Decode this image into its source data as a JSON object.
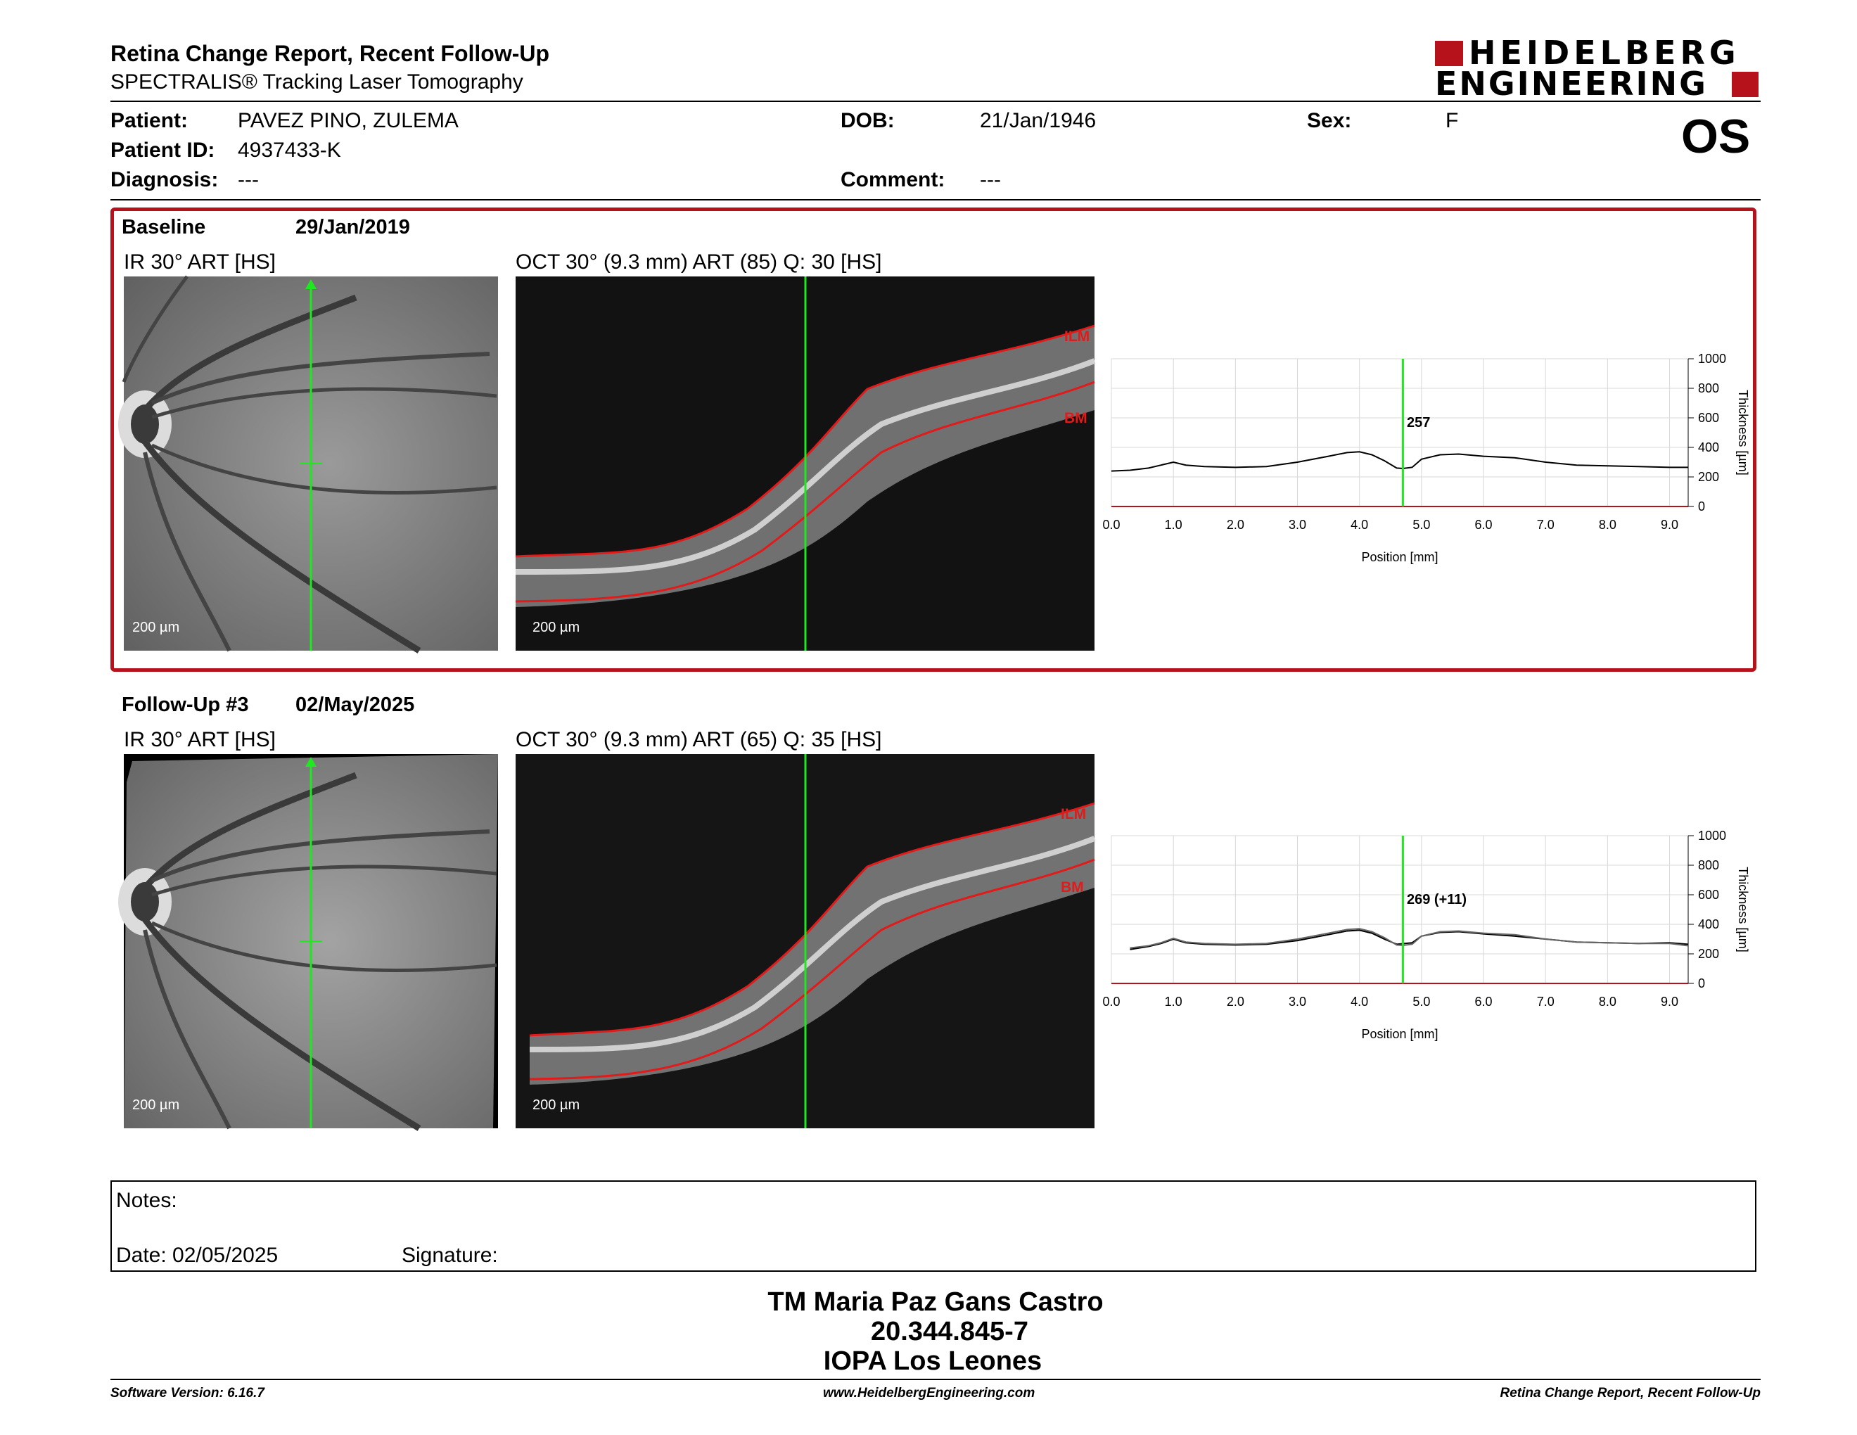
{
  "header": {
    "title": "Retina Change Report, Recent Follow-Up",
    "subtitle": "SPECTRALIS® Tracking Laser Tomography",
    "brand_line1": "HEIDELBERG",
    "brand_line2": "ENGINEERING",
    "brand_color": "#b5121b"
  },
  "patient": {
    "patient_label": "Patient:",
    "patient_value": "PAVEZ PINO, ZULEMA",
    "id_label": "Patient ID:",
    "id_value": "4937433-K",
    "diagnosis_label": "Diagnosis:",
    "diagnosis_value": "---",
    "dob_label": "DOB:",
    "dob_value": "21/Jan/1946",
    "comment_label": "Comment:",
    "comment_value": "---",
    "sex_label": "Sex:",
    "sex_value": "F",
    "eye": "OS"
  },
  "visits": [
    {
      "label": "Baseline",
      "date": "29/Jan/2019",
      "ir_caption": "IR 30° ART [HS]",
      "oct_caption": "OCT 30° (9.3 mm) ART (85) Q: 30 [HS]",
      "ir_scale": "200 µm",
      "oct_scale": "200 µm",
      "ilm": "ILM",
      "bm": "BM",
      "marker_label": "257"
    },
    {
      "label": "Follow-Up #3",
      "date": "02/May/2025",
      "ir_caption": "IR 30° ART [HS]",
      "oct_caption": "OCT 30° (9.3 mm) ART (65) Q: 35 [HS]",
      "ir_scale": "200 µm",
      "oct_scale": "200 µm",
      "ilm": "ILM",
      "bm": "BM",
      "marker_label": "269 (+11)"
    }
  ],
  "chart_data": [
    {
      "type": "line",
      "xlabel": "Position [mm]",
      "ylabel": "Thickness [µm]",
      "xlim": [
        0,
        9.3
      ],
      "ylim": [
        0,
        1000
      ],
      "xticks": [
        "0.0",
        "1.0",
        "2.0",
        "3.0",
        "4.0",
        "5.0",
        "6.0",
        "7.0",
        "8.0",
        "9.0"
      ],
      "yticks": [
        "0",
        "200",
        "400",
        "600",
        "800",
        "1000"
      ],
      "marker_x": 4.7,
      "marker_value": "257",
      "series": [
        {
          "x": [
            0,
            0.3,
            0.6,
            0.8,
            1.0,
            1.2,
            1.5,
            2.0,
            2.5,
            3.0,
            3.5,
            3.8,
            4.0,
            4.2,
            4.4,
            4.6,
            4.7,
            4.85,
            5.0,
            5.3,
            5.6,
            6.0,
            6.5,
            7.0,
            7.5,
            8.0,
            8.5,
            9.0,
            9.3
          ],
          "y": [
            240,
            245,
            260,
            280,
            300,
            280,
            270,
            265,
            270,
            300,
            340,
            365,
            370,
            350,
            310,
            260,
            257,
            265,
            320,
            350,
            355,
            340,
            330,
            300,
            280,
            275,
            270,
            265,
            265
          ]
        }
      ]
    },
    {
      "type": "line",
      "xlabel": "Position [mm]",
      "ylabel": "Thickness [µm]",
      "xlim": [
        0,
        9.3
      ],
      "ylim": [
        0,
        1000
      ],
      "xticks": [
        "0.0",
        "1.0",
        "2.0",
        "3.0",
        "4.0",
        "5.0",
        "6.0",
        "7.0",
        "8.0",
        "9.0"
      ],
      "yticks": [
        "0",
        "200",
        "400",
        "600",
        "800",
        "1000"
      ],
      "marker_x": 4.7,
      "marker_value": "269 (+11)",
      "series": [
        {
          "x": [
            0.3,
            0.6,
            0.8,
            1.0,
            1.2,
            1.5,
            2.0,
            2.5,
            3.0,
            3.5,
            3.8,
            4.0,
            4.2,
            4.4,
            4.6,
            4.7,
            4.85,
            5.0,
            5.3,
            5.6,
            6.0,
            6.5,
            7.0,
            7.5,
            8.0,
            8.5,
            9.0,
            9.3
          ],
          "y": [
            230,
            250,
            270,
            300,
            275,
            265,
            260,
            265,
            290,
            330,
            355,
            360,
            340,
            300,
            265,
            269,
            275,
            320,
            345,
            350,
            335,
            320,
            300,
            280,
            275,
            270,
            275,
            265
          ]
        },
        {
          "x": [
            0.3,
            0.6,
            0.8,
            1.0,
            1.2,
            1.5,
            2.0,
            2.5,
            3.0,
            3.5,
            3.8,
            4.0,
            4.2,
            4.4,
            4.6,
            4.7,
            4.85,
            5.0,
            5.3,
            5.6,
            6.0,
            6.5,
            7.0,
            7.5,
            8.0,
            8.5,
            9.0,
            9.3
          ],
          "y": [
            240,
            255,
            275,
            305,
            280,
            270,
            265,
            270,
            300,
            340,
            365,
            370,
            350,
            310,
            260,
            257,
            265,
            320,
            350,
            355,
            340,
            330,
            300,
            280,
            275,
            270,
            270,
            255
          ]
        }
      ]
    }
  ],
  "notes": {
    "notes_label": "Notes:",
    "date_label": "Date: 02/05/2025",
    "signature_label": "Signature:"
  },
  "signer": {
    "name": "TM Maria Paz Gans Castro",
    "id": "20.344.845-7",
    "org": "IOPA Los Leones"
  },
  "footer": {
    "version": "Software Version: 6.16.7",
    "website": "www.HeidelbergEngineering.com",
    "report_name": "Retina Change Report, Recent Follow-Up"
  }
}
